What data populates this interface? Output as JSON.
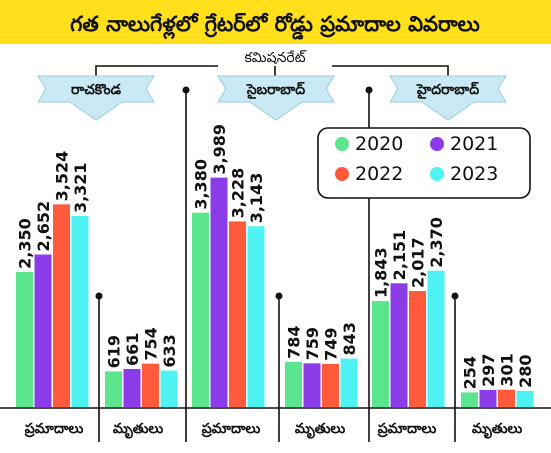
{
  "title": "గత నాలుగేళ్లలో గ్రేటర్‌లో రోడ్డు ప్రమాదాల వివరాలు",
  "group_label": "కమిషనరేట్",
  "colors": {
    "header_bg": "#ffe01a",
    "banner_bg": "#c9eaf5",
    "series": [
      "#5be58c",
      "#8b3be8",
      "#ff5a3c",
      "#4ef2f2"
    ]
  },
  "chart_data": {
    "type": "bar",
    "legend_position": "top-right",
    "legend": [
      "2020",
      "2021",
      "2022",
      "2023"
    ],
    "panels": [
      {
        "name": "రాచకొండ",
        "groups": [
          {
            "label": "ప్రమాదాలు",
            "values": [
              2350,
              2652,
              3524,
              3321
            ],
            "labels": [
              "2,350",
              "2,652",
              "3,524",
              "3,321"
            ]
          },
          {
            "label": "మృతులు",
            "values": [
              619,
              661,
              754,
              633
            ],
            "labels": [
              "619",
              "661",
              "754",
              "633"
            ]
          }
        ]
      },
      {
        "name": "సైబరాబాద్",
        "groups": [
          {
            "label": "ప్రమాదాలు",
            "values": [
              3380,
              3989,
              3228,
              3143
            ],
            "labels": [
              "3,380",
              "3,989",
              "3,228",
              "3,143"
            ]
          },
          {
            "label": "మృతులు",
            "values": [
              784,
              759,
              749,
              843
            ],
            "labels": [
              "784",
              "759",
              "749",
              "843"
            ]
          }
        ]
      },
      {
        "name": "హైదరాబాద్",
        "groups": [
          {
            "label": "ప్రమాదాలు",
            "values": [
              1843,
              2151,
              2017,
              2370
            ],
            "labels": [
              "1,843",
              "2,151",
              "2,017",
              "2,370"
            ]
          },
          {
            "label": "మృతులు",
            "values": [
              254,
              297,
              301,
              280
            ],
            "labels": [
              "254",
              "297",
              "301",
              "280"
            ]
          }
        ]
      }
    ]
  }
}
